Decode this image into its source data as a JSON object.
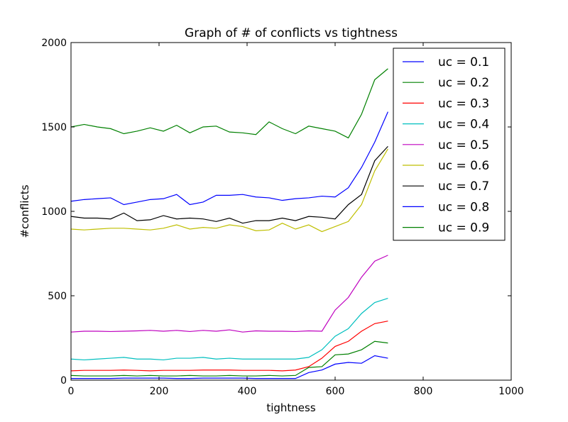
{
  "chart_data": {
    "type": "line",
    "title": "Graph of # of conflicts vs tightness",
    "xlabel": "tightness",
    "ylabel": "#conflicts",
    "xlim": [
      0,
      1000
    ],
    "ylim": [
      0,
      2000
    ],
    "xticks": [
      0,
      200,
      400,
      600,
      800,
      1000
    ],
    "yticks": [
      0,
      500,
      1000,
      1500,
      2000
    ],
    "grid": false,
    "legend_position": "top-right",
    "x": [
      0,
      30,
      60,
      90,
      120,
      150,
      180,
      210,
      240,
      270,
      300,
      330,
      360,
      390,
      420,
      450,
      480,
      510,
      540,
      570,
      600,
      630,
      660,
      690,
      720
    ],
    "series": [
      {
        "name": "uc = 0.1",
        "color": "#0000ff",
        "values": [
          10,
          10,
          10,
          10,
          12,
          12,
          12,
          12,
          10,
          10,
          12,
          12,
          12,
          12,
          10,
          10,
          10,
          10,
          45,
          60,
          95,
          105,
          100,
          145,
          130
        ]
      },
      {
        "name": "uc = 0.2",
        "color": "#008000",
        "values": [
          28,
          25,
          25,
          25,
          28,
          25,
          28,
          25,
          25,
          28,
          25,
          25,
          28,
          25,
          25,
          28,
          25,
          28,
          75,
          80,
          150,
          155,
          180,
          230,
          220
        ]
      },
      {
        "name": "uc = 0.3",
        "color": "#ff0000",
        "values": [
          55,
          58,
          58,
          58,
          60,
          58,
          55,
          58,
          58,
          58,
          60,
          60,
          60,
          58,
          58,
          58,
          55,
          60,
          80,
          130,
          200,
          230,
          290,
          335,
          350
        ]
      },
      {
        "name": "uc = 0.4",
        "color": "#00bfbf",
        "values": [
          125,
          120,
          125,
          130,
          135,
          125,
          125,
          120,
          130,
          130,
          135,
          125,
          130,
          125,
          125,
          125,
          125,
          125,
          135,
          180,
          260,
          305,
          395,
          460,
          485
        ]
      },
      {
        "name": "uc = 0.5",
        "color": "#bf00bf",
        "values": [
          285,
          290,
          290,
          288,
          290,
          292,
          295,
          290,
          295,
          288,
          295,
          290,
          298,
          285,
          292,
          290,
          290,
          288,
          292,
          290,
          415,
          490,
          610,
          705,
          740
        ]
      },
      {
        "name": "uc = 0.6",
        "color": "#bfbf00",
        "values": [
          895,
          890,
          895,
          900,
          900,
          895,
          890,
          900,
          920,
          895,
          905,
          900,
          920,
          910,
          885,
          890,
          930,
          895,
          920,
          880,
          910,
          940,
          1040,
          1240,
          1370
        ]
      },
      {
        "name": "uc = 0.7",
        "color": "#000000",
        "values": [
          970,
          960,
          960,
          955,
          990,
          945,
          950,
          975,
          955,
          960,
          955,
          940,
          960,
          930,
          945,
          945,
          960,
          945,
          970,
          965,
          955,
          1040,
          1100,
          1300,
          1385
        ]
      },
      {
        "name": "uc = 0.8",
        "color": "#0000ff",
        "values": [
          1060,
          1070,
          1075,
          1080,
          1040,
          1055,
          1070,
          1075,
          1100,
          1040,
          1055,
          1095,
          1095,
          1100,
          1085,
          1080,
          1065,
          1075,
          1080,
          1090,
          1085,
          1140,
          1260,
          1410,
          1590
        ]
      },
      {
        "name": "uc = 0.9",
        "color": "#008000",
        "values": [
          1500,
          1515,
          1500,
          1490,
          1460,
          1475,
          1495,
          1475,
          1510,
          1465,
          1500,
          1505,
          1470,
          1465,
          1455,
          1530,
          1490,
          1460,
          1505,
          1490,
          1475,
          1435,
          1575,
          1780,
          1845
        ]
      }
    ]
  }
}
